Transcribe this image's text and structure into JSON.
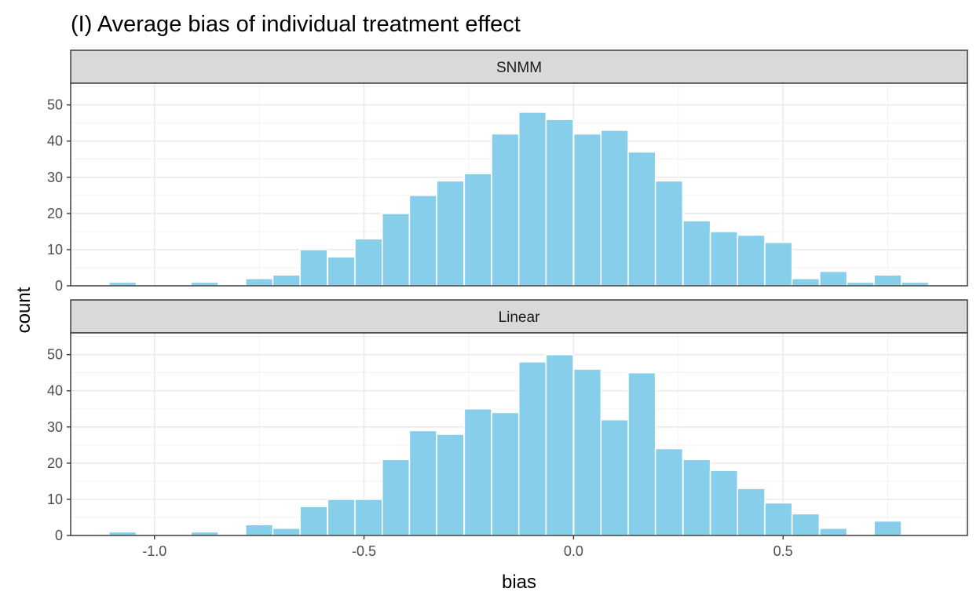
{
  "chart_data": {
    "type": "bar",
    "title": "(I) Average bias of individual treatment effect",
    "xlabel": "bias",
    "ylabel": "count",
    "xlim": [
      -1.2,
      0.94
    ],
    "ylim": [
      0,
      56
    ],
    "x_ticks": [
      "-1.0",
      "-0.5",
      "0.0",
      "0.5"
    ],
    "x_tick_values": [
      -1.0,
      -0.5,
      0.0,
      0.5
    ],
    "y_ticks": [
      "0",
      "10",
      "20",
      "30",
      "40",
      "50"
    ],
    "y_tick_values": [
      0,
      10,
      20,
      30,
      40,
      50
    ],
    "bin_width": 0.0652,
    "bins": [
      -1.076,
      -1.011,
      -0.946,
      -0.88,
      -0.815,
      -0.75,
      -0.685,
      -0.62,
      -0.554,
      -0.489,
      -0.424,
      -0.359,
      -0.294,
      -0.228,
      -0.163,
      -0.098,
      -0.033,
      0.033,
      0.098,
      0.163,
      0.228,
      0.294,
      0.359,
      0.424,
      0.489,
      0.554,
      0.62,
      0.685,
      0.75,
      0.815,
      0.88
    ],
    "grid": true,
    "bar_color": "#87CEEB",
    "panels": [
      {
        "name": "SNMM",
        "values": [
          1,
          0,
          0,
          1,
          0,
          2,
          3,
          10,
          8,
          13,
          20,
          25,
          29,
          31,
          42,
          48,
          46,
          42,
          43,
          37,
          29,
          18,
          15,
          14,
          12,
          2,
          4,
          1,
          3,
          1,
          0
        ]
      },
      {
        "name": "Linear",
        "values": [
          1,
          0,
          0,
          1,
          0,
          3,
          2,
          8,
          10,
          10,
          21,
          29,
          28,
          35,
          34,
          48,
          50,
          46,
          32,
          45,
          24,
          21,
          18,
          13,
          9,
          6,
          2,
          0,
          4,
          0,
          0
        ]
      }
    ]
  }
}
